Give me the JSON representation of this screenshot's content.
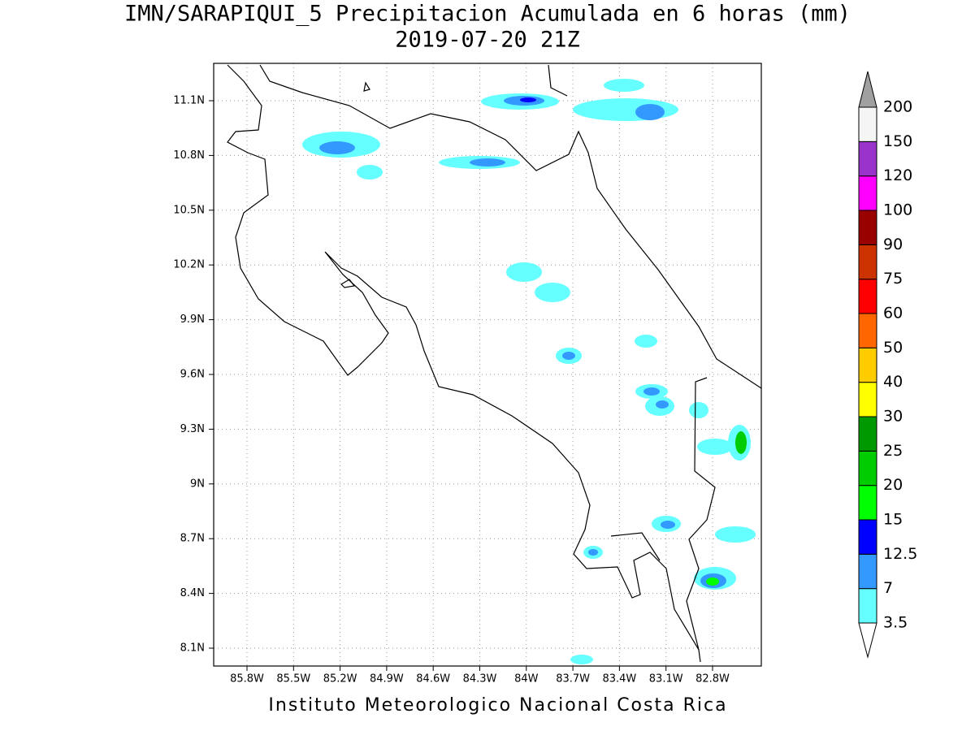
{
  "map": {
    "title": "IMN/SARAPIQUI_5 Precipitacion Acumulada en 6 horas (mm)",
    "subtitle": "2019-07-20 21Z",
    "lon_ticks": [
      "85.8W",
      "85.5W",
      "85.2W",
      "84.9W",
      "84.6W",
      "84.3W",
      "84W",
      "83.7W",
      "83.4W",
      "83.1W",
      "82.8W"
    ],
    "lat_ticks": [
      "11.1N",
      "10.8N",
      "10.5N",
      "10.2N",
      "9.9N",
      "9.6N",
      "9.3N",
      "9N",
      "8.7N",
      "8.4N",
      "8.1N"
    ],
    "colorbar": {
      "levels": [
        3.5,
        7,
        12.5,
        15,
        20,
        25,
        30,
        40,
        50,
        60,
        75,
        90,
        100,
        120,
        150,
        200
      ],
      "colors": [
        "#66ffff",
        "#3399ff",
        "#0000ff",
        "#00ff00",
        "#00cc00",
        "#009900",
        "#ffff00",
        "#ffcc00",
        "#ff6600",
        "#ff0000",
        "#cc3300",
        "#990000",
        "#ff00ff",
        "#9933cc",
        "#f5f5f5"
      ],
      "under_color": "#ffffff",
      "over_color": "#a0a0a0"
    },
    "footer": "Instituto Meteorologico Nacional Costa Rica"
  }
}
